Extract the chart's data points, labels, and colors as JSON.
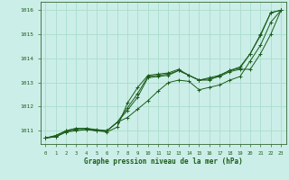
{
  "title": "Graphe pression niveau de la mer (hPa)",
  "bg_color": "#cceee8",
  "grid_color": "#aaddcc",
  "line_color": "#1a5c1a",
  "axis_color": "#336633",
  "x_ticks": [
    0,
    1,
    2,
    3,
    4,
    5,
    6,
    7,
    8,
    9,
    10,
    11,
    12,
    13,
    14,
    15,
    16,
    17,
    18,
    19,
    20,
    21,
    22,
    23
  ],
  "ylim": [
    1010.45,
    1016.35
  ],
  "yticks": [
    1011,
    1012,
    1013,
    1014,
    1015,
    1016
  ],
  "series": [
    [
      1010.7,
      1010.75,
      1010.95,
      1011.0,
      1011.05,
      1011.0,
      1011.0,
      1011.35,
      1011.55,
      1011.9,
      1012.25,
      1012.65,
      1013.0,
      1013.1,
      1013.05,
      1012.7,
      1012.8,
      1012.9,
      1013.1,
      1013.25,
      1013.9,
      1014.55,
      1015.5,
      1016.0
    ],
    [
      1010.7,
      1010.8,
      1011.0,
      1011.1,
      1011.1,
      1011.0,
      1011.0,
      1011.35,
      1011.85,
      1012.4,
      1013.2,
      1013.25,
      1013.3,
      1013.5,
      1013.3,
      1013.1,
      1013.15,
      1013.25,
      1013.45,
      1013.55,
      1013.55,
      1014.2,
      1015.0,
      1016.0
    ],
    [
      1010.7,
      1010.8,
      1011.0,
      1011.1,
      1011.1,
      1011.05,
      1011.0,
      1011.35,
      1011.95,
      1012.55,
      1013.25,
      1013.3,
      1013.35,
      1013.5,
      1013.3,
      1013.1,
      1013.2,
      1013.3,
      1013.5,
      1013.65,
      1014.2,
      1014.95,
      1015.9,
      1016.0
    ],
    [
      1010.7,
      1010.75,
      1010.95,
      1011.05,
      1011.05,
      1011.0,
      1010.95,
      1011.15,
      1012.15,
      1012.8,
      1013.3,
      1013.35,
      1013.4,
      1013.55,
      1013.3,
      1013.1,
      1013.1,
      1013.3,
      1013.5,
      1013.6,
      1014.2,
      1015.0,
      1015.9,
      1016.0
    ]
  ]
}
